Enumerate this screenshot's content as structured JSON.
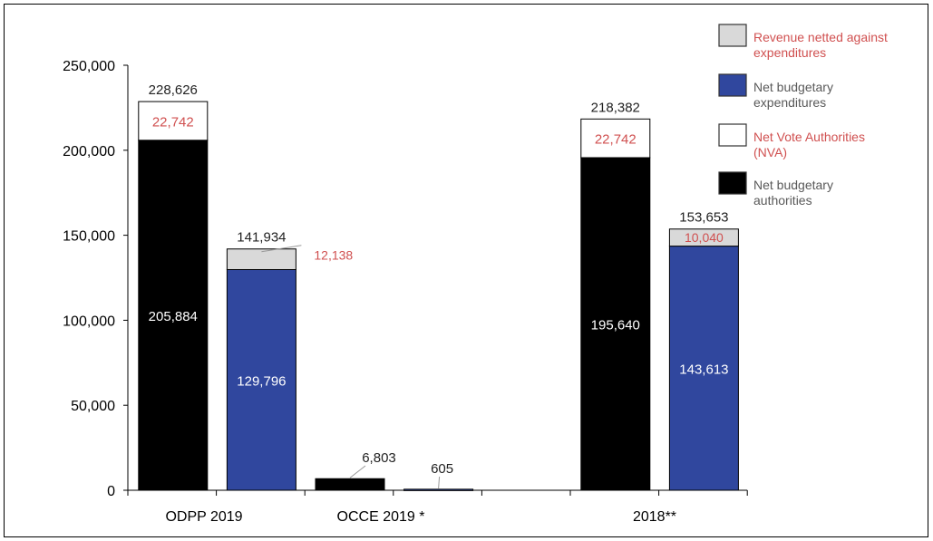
{
  "chart_data": {
    "type": "bar",
    "stacked": true,
    "title": "",
    "xlabel": "",
    "ylabel": "",
    "ylim": [
      0,
      250000
    ],
    "yticks": [
      0,
      50000,
      100000,
      150000,
      200000,
      250000
    ],
    "ytick_labels": [
      "0",
      "50,000",
      "100,000",
      "150,000",
      "200,000",
      "250,000"
    ],
    "grid": false,
    "legend_placement": "top-right",
    "categories": [
      "ODPP 2019",
      "OCCE 2019 *",
      "2018**"
    ],
    "series": [
      {
        "name": "Net budgetary authorities",
        "color": "#000000",
        "label_color": "#ffffff",
        "group": "authorities",
        "values": [
          205884,
          6803,
          195640
        ],
        "labels": [
          "205,884",
          "6,803",
          "195,640"
        ]
      },
      {
        "name": "Net Vote Authorities (NVA)",
        "color": "#ffffff",
        "label_color": "#d05050",
        "group": "authorities",
        "values": [
          22742,
          0,
          22742
        ],
        "labels": [
          "22,742",
          "",
          "22,742"
        ]
      },
      {
        "name": "Net budgetary expenditures",
        "color": "#30479e",
        "label_color": "#ffffff",
        "group": "expenditures",
        "values": [
          129796,
          605,
          143613
        ],
        "labels": [
          "129,796",
          "605",
          "143,613"
        ]
      },
      {
        "name": "Revenue netted against expenditures",
        "color": "#d9d9d9",
        "label_color": "#d05050",
        "group": "expenditures",
        "values": [
          12138,
          0,
          10040
        ],
        "labels": [
          "12,138",
          "",
          "10,040"
        ]
      }
    ],
    "totals": {
      "authorities": [
        "228,626",
        "6,803",
        "218,382"
      ],
      "expenditures": [
        "141,934",
        "605",
        "153,653"
      ]
    },
    "legend": [
      {
        "label": "Revenue netted against expenditures",
        "color": "#d9d9d9",
        "text_color": "#d05050"
      },
      {
        "label": "Net budgetary expenditures",
        "color": "#30479e",
        "text_color": "#595959"
      },
      {
        "label": "Net Vote Authorities (NVA)",
        "color": "#ffffff",
        "text_color": "#d05050"
      },
      {
        "label": "Net budgetary authorities",
        "color": "#000000",
        "text_color": "#595959"
      }
    ]
  }
}
